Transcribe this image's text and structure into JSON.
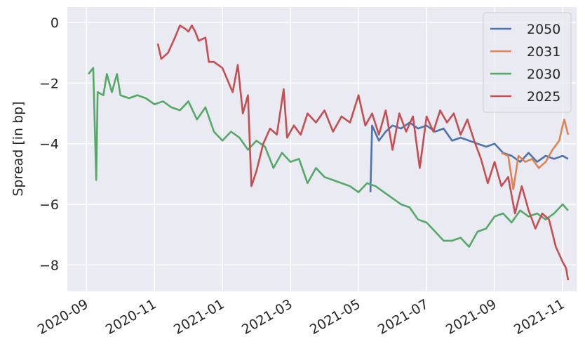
{
  "chart_data": {
    "type": "line",
    "ylabel": "Spread [in bp]",
    "xlim": [
      -0.56,
      14.41
    ],
    "xticks": [
      {
        "value": 0,
        "label": "2020-09"
      },
      {
        "value": 2,
        "label": "2020-11"
      },
      {
        "value": 4,
        "label": "2021-01"
      },
      {
        "value": 6,
        "label": "2021-03"
      },
      {
        "value": 8,
        "label": "2021-05"
      },
      {
        "value": 10,
        "label": "2021-07"
      },
      {
        "value": 12,
        "label": "2021-09"
      },
      {
        "value": 14,
        "label": "2021-11"
      }
    ],
    "ylim": [
      -8.87,
      0.51
    ],
    "yticks": [
      0,
      {
        "value": -2,
        "label": "−2"
      },
      {
        "value": -4,
        "label": "−4"
      },
      {
        "value": -6,
        "label": "−6"
      },
      {
        "value": -8,
        "label": "−8"
      }
    ],
    "grid": true,
    "legend": "upper right",
    "series": [
      {
        "name": "2050",
        "color": "#4c72b0",
        "x": [
          8.35,
          8.4,
          8.6,
          8.8,
          9.0,
          9.25,
          9.5,
          9.75,
          10.0,
          10.25,
          10.5,
          10.75,
          11.0,
          11.25,
          11.5,
          11.75,
          12.0,
          12.25,
          12.5,
          12.75,
          13.0,
          13.25,
          13.5,
          13.75,
          14.0,
          14.16
        ],
        "values": [
          -5.6,
          -3.4,
          -3.9,
          -3.6,
          -3.4,
          -3.5,
          -3.3,
          -3.5,
          -3.4,
          -3.6,
          -3.5,
          -3.9,
          -3.8,
          -3.9,
          -4.0,
          -4.1,
          -4.0,
          -4.3,
          -4.4,
          -4.6,
          -4.3,
          -4.6,
          -4.4,
          -4.5,
          -4.4,
          -4.5
        ]
      },
      {
        "name": "2031",
        "color": "#dd8452",
        "x": [
          12.2,
          12.4,
          12.55,
          12.7,
          12.9,
          13.1,
          13.3,
          13.5,
          13.7,
          13.9,
          14.0,
          14.05,
          14.16
        ],
        "values": [
          -4.3,
          -4.4,
          -5.5,
          -4.4,
          -4.6,
          -4.5,
          -4.8,
          -4.6,
          -4.2,
          -3.9,
          -3.4,
          -3.2,
          -3.7
        ]
      },
      {
        "name": "2030",
        "color": "#55a868",
        "x": [
          0.06,
          0.2,
          0.29,
          0.33,
          0.5,
          0.6,
          0.75,
          0.9,
          1.0,
          1.25,
          1.5,
          1.75,
          2.0,
          2.25,
          2.5,
          2.75,
          3.0,
          3.25,
          3.5,
          3.75,
          4.0,
          4.25,
          4.5,
          4.75,
          5.0,
          5.25,
          5.5,
          5.75,
          6.0,
          6.25,
          6.5,
          6.75,
          7.0,
          7.25,
          7.5,
          7.75,
          8.0,
          8.25,
          8.5,
          8.75,
          9.0,
          9.25,
          9.5,
          9.75,
          10.0,
          10.25,
          10.5,
          10.75,
          11.0,
          11.25,
          11.5,
          11.75,
          12.0,
          12.25,
          12.5,
          12.75,
          13.0,
          13.25,
          13.5,
          13.75,
          14.0,
          14.16
        ],
        "values": [
          -1.7,
          -1.5,
          -5.2,
          -2.3,
          -2.4,
          -1.7,
          -2.3,
          -1.7,
          -2.4,
          -2.5,
          -2.4,
          -2.5,
          -2.7,
          -2.6,
          -2.8,
          -2.9,
          -2.6,
          -3.2,
          -2.8,
          -3.6,
          -3.9,
          -3.6,
          -3.8,
          -4.2,
          -3.9,
          -4.1,
          -4.8,
          -4.3,
          -4.6,
          -4.5,
          -5.3,
          -4.8,
          -5.1,
          -5.2,
          -5.3,
          -5.4,
          -5.6,
          -5.3,
          -5.4,
          -5.6,
          -5.8,
          -6.0,
          -6.1,
          -6.5,
          -6.6,
          -6.9,
          -7.2,
          -7.2,
          -7.1,
          -7.4,
          -6.9,
          -6.8,
          -6.4,
          -6.3,
          -6.6,
          -6.2,
          -6.4,
          -6.3,
          -6.5,
          -6.3,
          -6.0,
          -6.2
        ]
      },
      {
        "name": "2025",
        "color": "#c44e52",
        "x": [
          2.1,
          2.2,
          2.4,
          2.6,
          2.75,
          2.9,
          3.0,
          3.1,
          3.2,
          3.3,
          3.5,
          3.6,
          3.75,
          4.0,
          4.15,
          4.3,
          4.45,
          4.6,
          4.75,
          4.85,
          5.0,
          5.2,
          5.4,
          5.6,
          5.8,
          5.9,
          6.1,
          6.3,
          6.5,
          6.75,
          7.0,
          7.25,
          7.5,
          7.75,
          8.0,
          8.2,
          8.4,
          8.6,
          8.8,
          9.0,
          9.2,
          9.4,
          9.6,
          9.8,
          10.0,
          10.2,
          10.4,
          10.6,
          10.8,
          11.0,
          11.2,
          11.4,
          11.6,
          11.8,
          12.0,
          12.2,
          12.4,
          12.6,
          12.8,
          13.0,
          13.2,
          13.4,
          13.6,
          13.8,
          14.0,
          14.1,
          14.16
        ],
        "values": [
          -0.7,
          -1.2,
          -1.0,
          -0.5,
          -0.1,
          -0.2,
          -0.3,
          -0.1,
          -0.3,
          -0.6,
          -0.5,
          -1.3,
          -1.3,
          -1.5,
          -1.9,
          -2.3,
          -1.4,
          -3.0,
          -2.4,
          -5.4,
          -4.9,
          -4.0,
          -3.5,
          -3.7,
          -2.2,
          -3.8,
          -3.4,
          -3.7,
          -3.0,
          -3.3,
          -2.9,
          -3.6,
          -3.1,
          -3.3,
          -2.4,
          -3.4,
          -3.0,
          -3.7,
          -2.9,
          -4.2,
          -3.0,
          -3.6,
          -3.1,
          -4.8,
          -3.1,
          -3.6,
          -2.9,
          -3.3,
          -3.0,
          -3.7,
          -3.2,
          -3.9,
          -4.5,
          -5.3,
          -4.6,
          -5.4,
          -5.1,
          -6.3,
          -5.4,
          -6.2,
          -6.8,
          -6.3,
          -6.5,
          -7.4,
          -7.9,
          -8.1,
          -8.5
        ]
      }
    ]
  }
}
